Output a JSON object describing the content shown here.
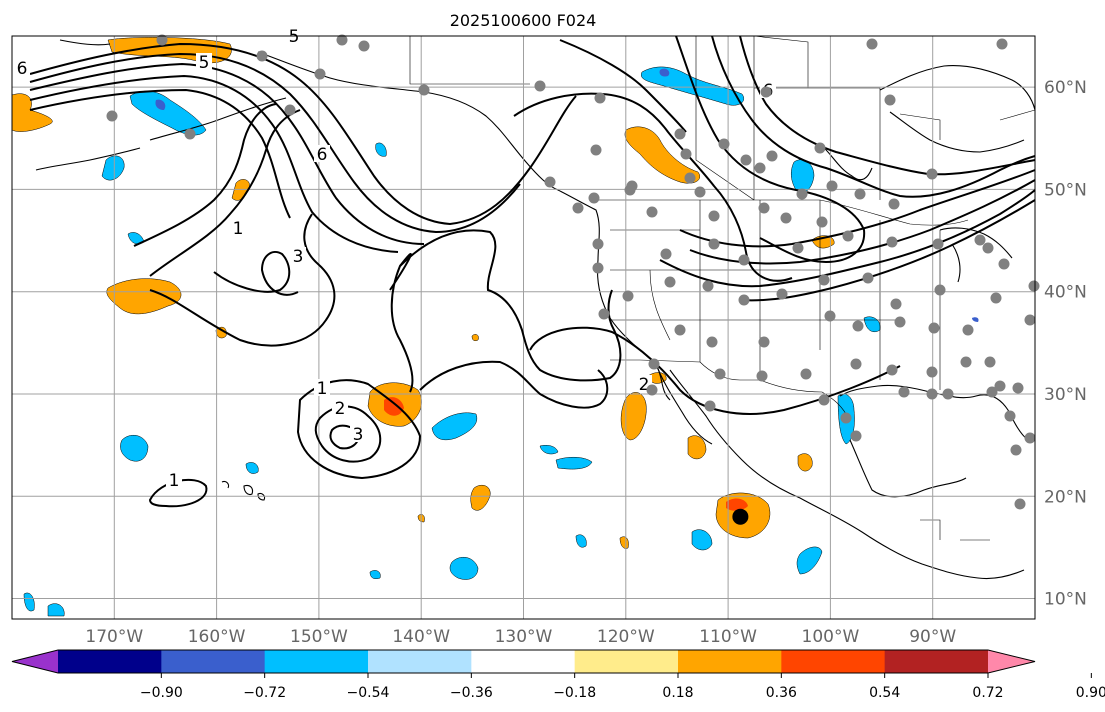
{
  "map": {
    "title": "2025100600 F024",
    "projection": "PlateCarree",
    "extent": {
      "lon": [
        -180,
        -80
      ],
      "lat": [
        8,
        65
      ]
    },
    "lon_labels": [
      "170°W",
      "160°W",
      "150°W",
      "140°W",
      "130°W",
      "120°W",
      "110°W",
      "100°W",
      "90°W"
    ],
    "lat_labels": [
      "60°N",
      "50°N",
      "40°N",
      "30°N",
      "20°N",
      "10°N"
    ],
    "contour_labels": [
      "6",
      "5",
      "1",
      "3",
      "6",
      "1",
      "2",
      "3",
      "1",
      "2",
      "5",
      "6"
    ],
    "storm_marker": {
      "lon": -108.8,
      "lat": 18.0
    },
    "station_marker_color": "#808080",
    "contour_color": "#000000",
    "coast_color": "#000000"
  },
  "colorbar": {
    "ticks": [
      "−0.90",
      "−0.72",
      "−0.54",
      "−0.36",
      "−0.18",
      "0.18",
      "0.36",
      "0.54",
      "0.72",
      "0.90"
    ],
    "colors": [
      "#9932cc",
      "#00008b",
      "#3a5fcd",
      "#00bfff",
      "#b0e2ff",
      "#ffffff",
      "#ffec8b",
      "#ffa500",
      "#ff4500",
      "#b22222",
      "#ff88aa"
    ]
  }
}
